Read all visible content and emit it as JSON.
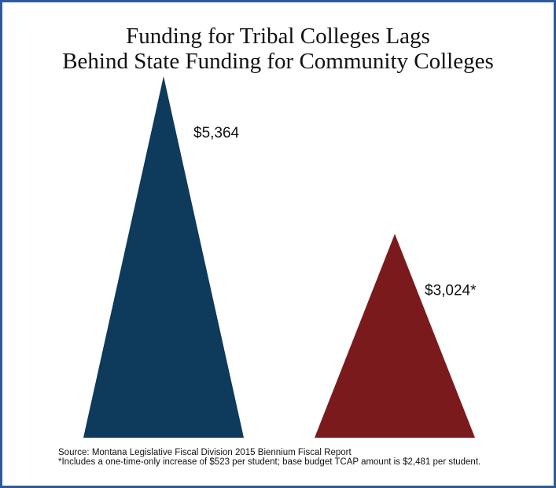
{
  "chart_data": {
    "type": "bar",
    "title_lines": [
      "Funding for Tribal Colleges Lags",
      "Behind State Funding for Community Colleges"
    ],
    "categories": [
      "",
      ""
    ],
    "values": [
      5364,
      3024
    ],
    "labels": [
      "$5,364",
      "$3,024*"
    ],
    "colors": [
      "#0e3a5c",
      "#7b1a1d"
    ],
    "ylim": [
      0,
      5364
    ],
    "grid": false,
    "legend": "none",
    "source": "Source: Montana Legislative Fiscal Division 2015 Biennium Fiscal Report",
    "footnote": "*Includes a one-time-only increase of $523 per student; base budget TCAP amount is $2,481 per student."
  }
}
